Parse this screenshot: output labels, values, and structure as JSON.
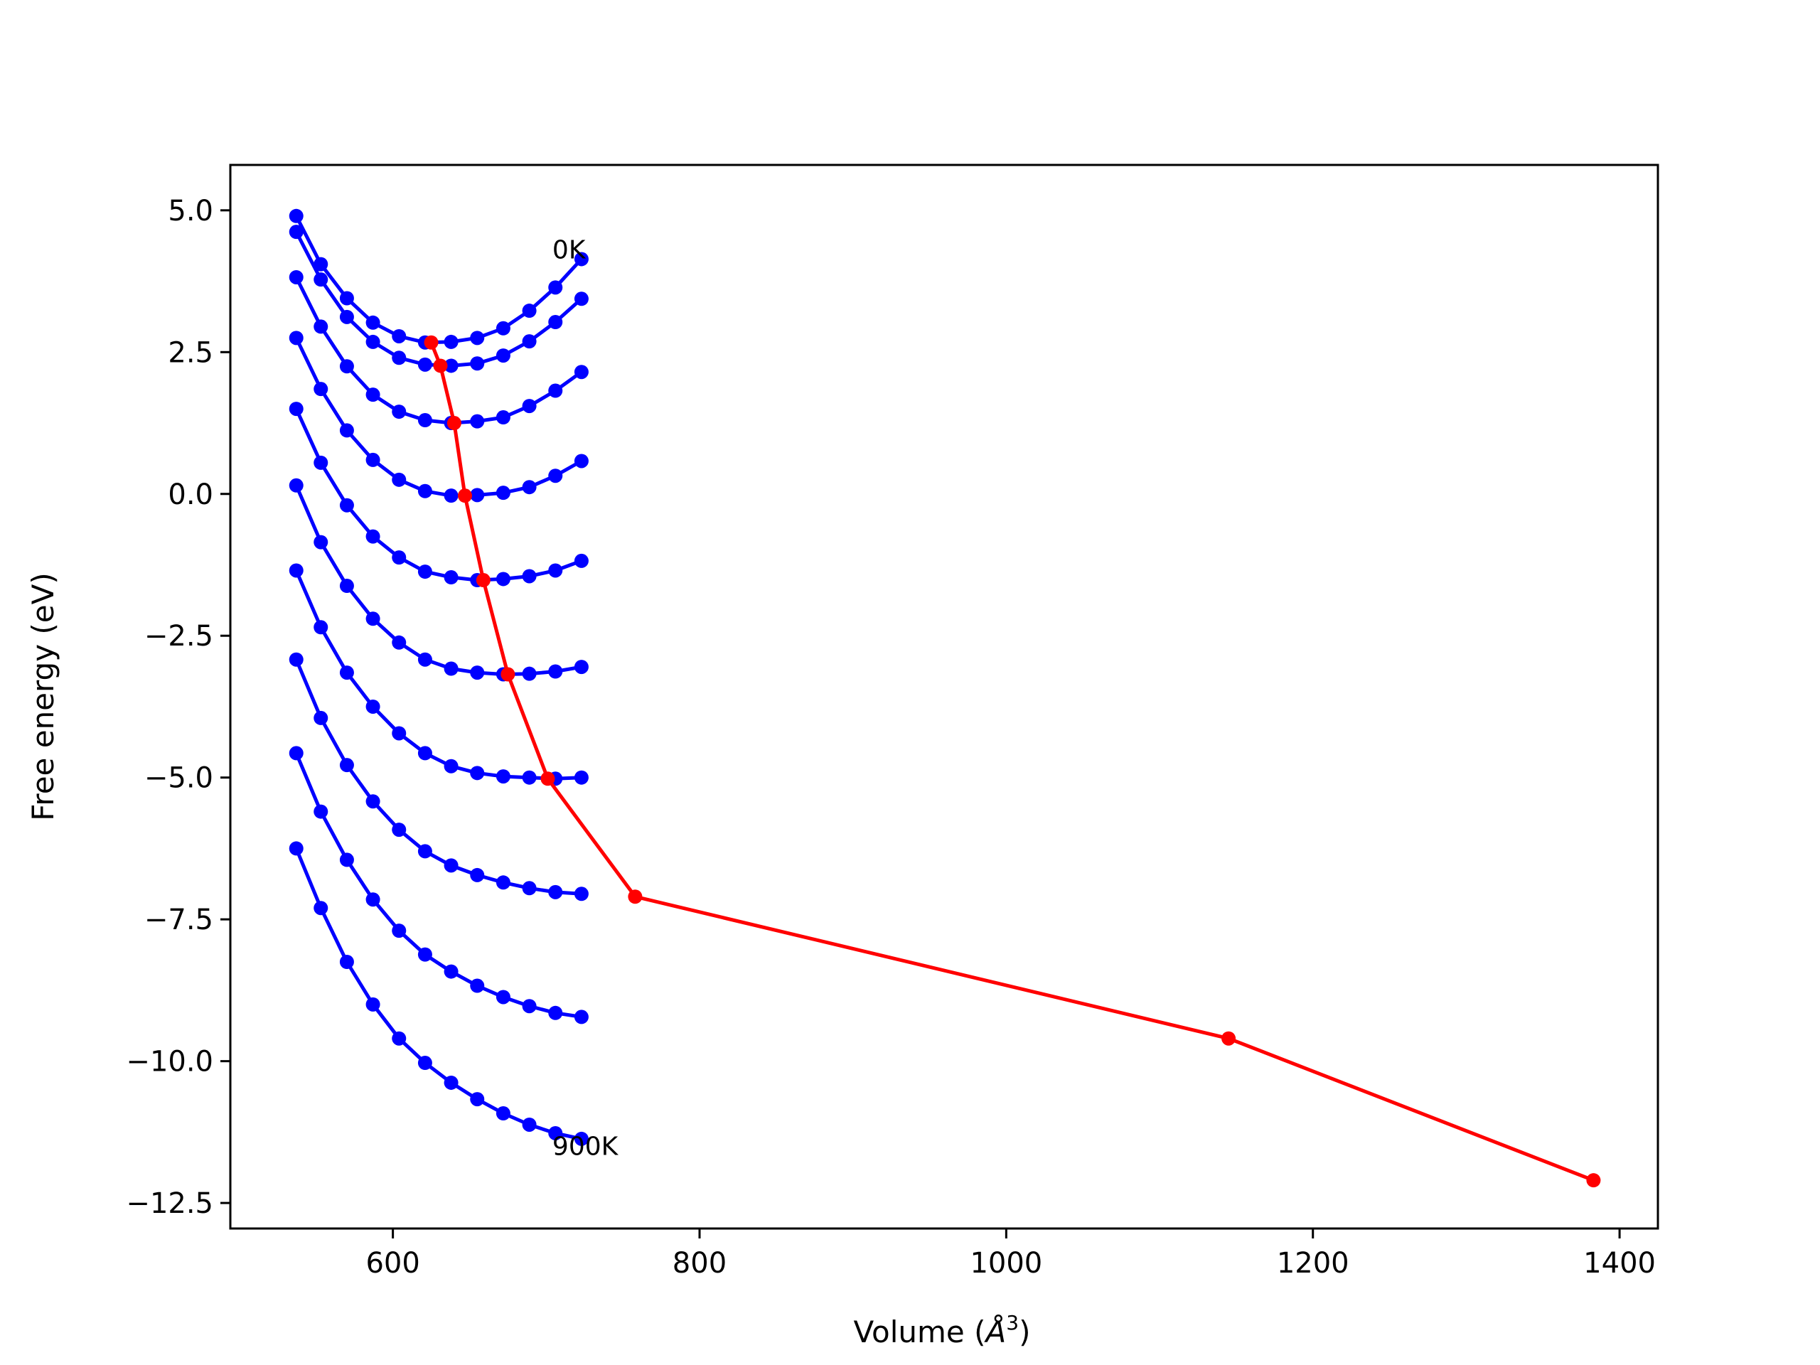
{
  "chart_data": {
    "type": "line",
    "title": "",
    "xlabel_parts": {
      "prefix": "Volume (",
      "symbol": "Å",
      "exponent": "3",
      "suffix": ")"
    },
    "ylabel": "Free energy (eV)",
    "xlim": [
      494,
      1425
    ],
    "ylim": [
      -12.95,
      5.8
    ],
    "xticks": [
      600,
      800,
      1000,
      1200,
      1400
    ],
    "xtick_labels": [
      "600",
      "800",
      "1000",
      "1200",
      "1400"
    ],
    "yticks": [
      5.0,
      2.5,
      0.0,
      -2.5,
      -5.0,
      -7.5,
      -10.0,
      -12.5
    ],
    "ytick_labels": [
      "5.0",
      "2.5",
      "0.0",
      "−2.5",
      "−5.0",
      "−7.5",
      "−10.0",
      "−12.5"
    ],
    "grid": false,
    "legend": "none",
    "colors": {
      "isotherm": "#0000ff",
      "minimum": "#ff0000"
    },
    "isotherm_x": [
      537,
      553,
      570,
      587,
      604,
      621,
      638,
      655,
      672,
      689,
      706,
      723
    ],
    "isotherms": [
      {
        "values": [
          4.9,
          4.05,
          3.45,
          3.02,
          2.78,
          2.67,
          2.68,
          2.75,
          2.92,
          3.23,
          3.64,
          4.14
        ]
      },
      {
        "values": [
          4.62,
          3.78,
          3.12,
          2.68,
          2.4,
          2.28,
          2.26,
          2.3,
          2.44,
          2.69,
          3.03,
          3.44
        ]
      },
      {
        "values": [
          3.82,
          2.95,
          2.25,
          1.75,
          1.45,
          1.3,
          1.25,
          1.28,
          1.35,
          1.55,
          1.82,
          2.15
        ]
      },
      {
        "values": [
          2.75,
          1.85,
          1.12,
          0.6,
          0.25,
          0.05,
          -0.03,
          -0.02,
          0.02,
          0.12,
          0.32,
          0.58
        ]
      },
      {
        "values": [
          1.5,
          0.55,
          -0.2,
          -0.75,
          -1.12,
          -1.37,
          -1.47,
          -1.52,
          -1.5,
          -1.45,
          -1.35,
          -1.18
        ]
      },
      {
        "values": [
          0.15,
          -0.85,
          -1.62,
          -2.2,
          -2.62,
          -2.92,
          -3.08,
          -3.15,
          -3.18,
          -3.17,
          -3.13,
          -3.05
        ]
      },
      {
        "values": [
          -1.35,
          -2.35,
          -3.15,
          -3.75,
          -4.22,
          -4.57,
          -4.8,
          -4.92,
          -4.98,
          -5.0,
          -5.02,
          -5.0
        ]
      },
      {
        "values": [
          -2.92,
          -3.95,
          -4.78,
          -5.42,
          -5.92,
          -6.3,
          -6.55,
          -6.72,
          -6.85,
          -6.95,
          -7.02,
          -7.05
        ]
      },
      {
        "values": [
          -4.57,
          -5.6,
          -6.45,
          -7.15,
          -7.7,
          -8.12,
          -8.42,
          -8.67,
          -8.87,
          -9.03,
          -9.15,
          -9.22
        ]
      },
      {
        "values": [
          -6.25,
          -7.3,
          -8.25,
          -9.0,
          -9.6,
          -10.03,
          -10.38,
          -10.67,
          -10.92,
          -11.12,
          -11.27,
          -11.37
        ]
      }
    ],
    "minima_curve": {
      "x": [
        625,
        631,
        640,
        647,
        659,
        675,
        701,
        758,
        1145,
        1383
      ],
      "values": [
        2.67,
        2.26,
        1.25,
        -0.03,
        -1.52,
        -3.18,
        -5.02,
        -7.1,
        -9.6,
        -12.1
      ]
    },
    "annotations": [
      {
        "text": "0K",
        "x": 704,
        "y": 4.15
      },
      {
        "text": "900K",
        "x": 704,
        "y": -11.65
      }
    ]
  }
}
